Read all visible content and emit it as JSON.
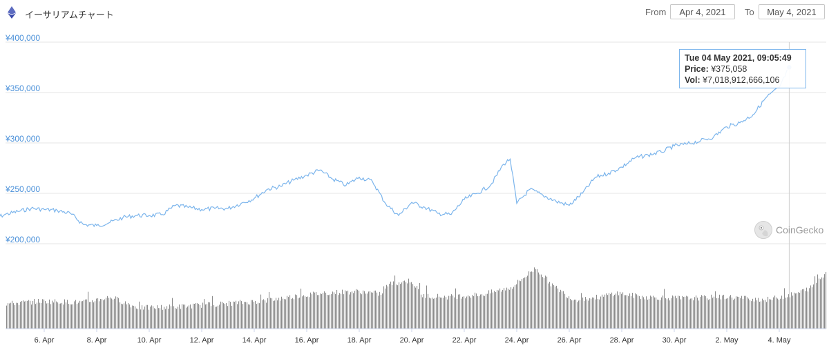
{
  "header": {
    "title": "イーサリアムチャート",
    "from_label": "From",
    "from_value": "Apr 4, 2021",
    "to_label": "To",
    "to_value": "May 4, 2021",
    "icon": "ethereum-icon"
  },
  "tooltip": {
    "date": "Tue 04 May 2021, 09:05:49",
    "price_label": "Price:",
    "price_value": "¥375,058",
    "vol_label": "Vol:",
    "vol_value": "¥7,018,912,666,106"
  },
  "watermark": {
    "text": "CoinGecko",
    "icon": "gecko-icon"
  },
  "colors": {
    "line": "#7cb5ec",
    "volume": "#8c8c8c",
    "ytick": "#4a90d9",
    "grid": "#e6e6e6"
  },
  "chart_data": {
    "type": "line",
    "title": "イーサリアムチャート",
    "currency": "JPY",
    "y_ticks": [
      "¥200,000",
      "¥250,000",
      "¥300,000",
      "¥350,000",
      "¥400,000"
    ],
    "ylim": [
      200000,
      400000
    ],
    "x_ticks": [
      "6. Apr",
      "8. Apr",
      "10. Apr",
      "12. Apr",
      "14. Apr",
      "16. Apr",
      "18. Apr",
      "20. Apr",
      "22. Apr",
      "24. Apr",
      "26. Apr",
      "28. Apr",
      "30. Apr",
      "2. May",
      "4. May"
    ],
    "grid": true,
    "series": [
      {
        "values": [
          [
            "2021-04-04",
            224000
          ],
          [
            "2021-04-04T12",
            229000
          ],
          [
            "2021-04-05",
            232000
          ],
          [
            "2021-04-05T12",
            235000
          ],
          [
            "2021-04-06",
            234000
          ],
          [
            "2021-04-06T12",
            233000
          ],
          [
            "2021-04-07",
            230000
          ],
          [
            "2021-04-07T12",
            219000
          ],
          [
            "2021-04-08",
            218000
          ],
          [
            "2021-04-08T12",
            221000
          ],
          [
            "2021-04-09",
            226000
          ],
          [
            "2021-04-09T12",
            228000
          ],
          [
            "2021-04-10",
            228000
          ],
          [
            "2021-04-10T12",
            229000
          ],
          [
            "2021-04-11",
            238000
          ],
          [
            "2021-04-11T12",
            236000
          ],
          [
            "2021-04-12",
            234000
          ],
          [
            "2021-04-12T12",
            235000
          ],
          [
            "2021-04-13",
            235000
          ],
          [
            "2021-04-13T12",
            240000
          ],
          [
            "2021-04-14",
            245000
          ],
          [
            "2021-04-14T12",
            254000
          ],
          [
            "2021-04-15",
            257000
          ],
          [
            "2021-04-15T12",
            263000
          ],
          [
            "2021-04-16",
            268000
          ],
          [
            "2021-04-16T12",
            273000
          ],
          [
            "2021-04-17",
            264000
          ],
          [
            "2021-04-17T12",
            258000
          ],
          [
            "2021-04-18",
            266000
          ],
          [
            "2021-04-18T12",
            262000
          ],
          [
            "2021-04-19",
            240000
          ],
          [
            "2021-04-19T12",
            228000
          ],
          [
            "2021-04-20",
            241000
          ],
          [
            "2021-04-20T12",
            236000
          ],
          [
            "2021-04-21",
            230000
          ],
          [
            "2021-04-21T12",
            229000
          ],
          [
            "2021-04-22",
            244000
          ],
          [
            "2021-04-22T12",
            250000
          ],
          [
            "2021-04-23",
            258000
          ],
          [
            "2021-04-23T12",
            279000
          ],
          [
            "2021-04-23T18",
            284000
          ],
          [
            "2021-04-24",
            240000
          ],
          [
            "2021-04-24T12",
            254000
          ],
          [
            "2021-04-25",
            248000
          ],
          [
            "2021-04-25T12",
            242000
          ],
          [
            "2021-04-26",
            238000
          ],
          [
            "2021-04-26T12",
            250000
          ],
          [
            "2021-04-27",
            266000
          ],
          [
            "2021-04-27T12",
            270000
          ],
          [
            "2021-04-28",
            276000
          ],
          [
            "2021-04-28T12",
            285000
          ],
          [
            "2021-04-29",
            288000
          ],
          [
            "2021-04-29T12",
            291000
          ],
          [
            "2021-04-30",
            297000
          ],
          [
            "2021-04-30T12",
            299000
          ],
          [
            "2021-05-01",
            302000
          ],
          [
            "2021-05-01T12",
            306000
          ],
          [
            "2021-05-02",
            316000
          ],
          [
            "2021-05-02T12",
            320000
          ],
          [
            "2021-05-03",
            328000
          ],
          [
            "2021-05-03T12",
            345000
          ],
          [
            "2021-05-04",
            355000
          ],
          [
            "2021-05-04T09:05:49",
            375058
          ]
        ]
      }
    ],
    "volume_series": "trading volume bars (no scale shown)"
  }
}
